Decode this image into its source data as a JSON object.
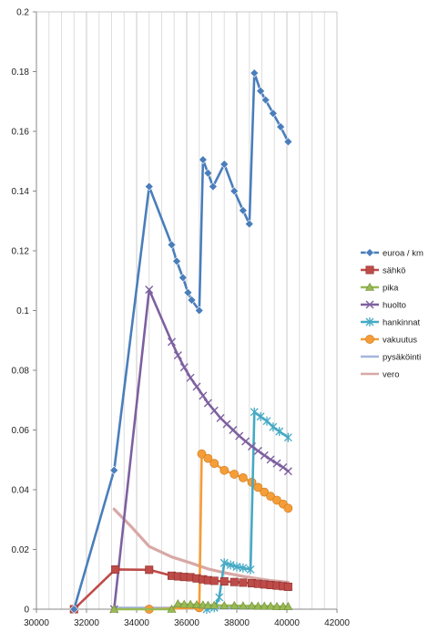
{
  "chart_data": {
    "type": "line",
    "title": "",
    "xlabel": "",
    "ylabel": "",
    "xlim": [
      30000,
      42000
    ],
    "ylim": [
      0,
      0.2
    ],
    "x_ticks": [
      30000,
      32000,
      34000,
      36000,
      38000,
      40000,
      42000
    ],
    "x_tick_labels": [
      "30000",
      "32000",
      "34000",
      "36000",
      "38000",
      "40000",
      "42000"
    ],
    "y_ticks": [
      0,
      0.02,
      0.04,
      0.06,
      0.08,
      0.1,
      0.12,
      0.14,
      0.16,
      0.18,
      0.2
    ],
    "y_tick_labels": [
      "0",
      "0.02",
      "0.04",
      "0.06",
      "0.08",
      "0.1",
      "0.12",
      "0.14",
      "0.16",
      "0.18",
      "0.2"
    ],
    "grid": "vertical",
    "legend_position": "right",
    "series": [
      {
        "name": "euroa / km",
        "color": "#4a7ebb",
        "marker": "diamond",
        "points": [
          [
            31500,
            0
          ],
          [
            33100,
            0.0465
          ],
          [
            34500,
            0.1415
          ],
          [
            35400,
            0.122
          ],
          [
            35600,
            0.1165
          ],
          [
            35850,
            0.111
          ],
          [
            36050,
            0.106
          ],
          [
            36200,
            0.1035
          ],
          [
            36500,
            0.1
          ],
          [
            36650,
            0.1505
          ],
          [
            36850,
            0.146
          ],
          [
            37050,
            0.1415
          ],
          [
            37500,
            0.149
          ],
          [
            37900,
            0.14
          ],
          [
            38250,
            0.1335
          ],
          [
            38500,
            0.129
          ],
          [
            38700,
            0.1795
          ],
          [
            38950,
            0.1735
          ],
          [
            39150,
            0.1705
          ],
          [
            39450,
            0.166
          ],
          [
            39750,
            0.1615
          ],
          [
            40050,
            0.1565
          ]
        ]
      },
      {
        "name": "sähkö",
        "color": "#be4b48",
        "marker": "square",
        "points": [
          [
            31500,
            0
          ],
          [
            33150,
            0.0133
          ],
          [
            34500,
            0.0132
          ],
          [
            35400,
            0.0112
          ],
          [
            35650,
            0.011
          ],
          [
            35900,
            0.0108
          ],
          [
            36150,
            0.0107
          ],
          [
            36400,
            0.0103
          ],
          [
            36650,
            0.01
          ],
          [
            36850,
            0.0097
          ],
          [
            37100,
            0.0095
          ],
          [
            37500,
            0.0093
          ],
          [
            37900,
            0.0091
          ],
          [
            38250,
            0.0089
          ],
          [
            38600,
            0.0087
          ],
          [
            38850,
            0.0085
          ],
          [
            39100,
            0.0083
          ],
          [
            39350,
            0.0081
          ],
          [
            39600,
            0.0079
          ],
          [
            39850,
            0.0077
          ],
          [
            40050,
            0.0075
          ]
        ]
      },
      {
        "name": "pika",
        "color": "#98b954",
        "marker": "triangle",
        "points": [
          [
            33100,
            0
          ],
          [
            35400,
            0
          ],
          [
            35650,
            0.0018
          ],
          [
            35900,
            0.0016
          ],
          [
            36150,
            0.0016
          ],
          [
            36400,
            0.0015
          ],
          [
            36650,
            0.0014
          ],
          [
            36850,
            0.0013
          ],
          [
            37100,
            0.0013
          ],
          [
            37500,
            0.0012
          ],
          [
            37900,
            0.0012
          ],
          [
            38250,
            0.0011
          ],
          [
            38600,
            0.0011
          ],
          [
            38850,
            0.001
          ],
          [
            39100,
            0.001
          ],
          [
            39350,
            0.001
          ],
          [
            39600,
            0.0009
          ],
          [
            39850,
            0.0009
          ],
          [
            40050,
            0.0009
          ]
        ]
      },
      {
        "name": "huolto",
        "color": "#7d60a0",
        "marker": "x",
        "points": [
          [
            33100,
            0
          ],
          [
            34500,
            0.107
          ],
          [
            35400,
            0.0895
          ],
          [
            35650,
            0.085
          ],
          [
            35900,
            0.081
          ],
          [
            36150,
            0.0775
          ],
          [
            36400,
            0.0745
          ],
          [
            36650,
            0.0715
          ],
          [
            36850,
            0.069
          ],
          [
            37100,
            0.0665
          ],
          [
            37350,
            0.064
          ],
          [
            37600,
            0.062
          ],
          [
            37850,
            0.06
          ],
          [
            38100,
            0.058
          ],
          [
            38350,
            0.0562
          ],
          [
            38600,
            0.0545
          ],
          [
            38850,
            0.053
          ],
          [
            39100,
            0.0515
          ],
          [
            39350,
            0.0501
          ],
          [
            39600,
            0.0488
          ],
          [
            39850,
            0.0475
          ],
          [
            40050,
            0.0462
          ]
        ]
      },
      {
        "name": "hankinnat",
        "color": "#46aac5",
        "marker": "star",
        "points": [
          [
            36800,
            0
          ],
          [
            37100,
            0.0005
          ],
          [
            37300,
            0.004
          ],
          [
            37500,
            0.0155
          ],
          [
            37750,
            0.0148
          ],
          [
            38000,
            0.0142
          ],
          [
            38250,
            0.0138
          ],
          [
            38550,
            0.0133
          ],
          [
            38700,
            0.066
          ],
          [
            38950,
            0.0645
          ],
          [
            39200,
            0.063
          ],
          [
            39450,
            0.061
          ],
          [
            39700,
            0.0595
          ],
          [
            40050,
            0.0575
          ]
        ]
      },
      {
        "name": "vakuutus",
        "color": "#f59d38",
        "marker": "circle",
        "points": [
          [
            34500,
            0
          ],
          [
            36500,
            0.0005
          ],
          [
            36600,
            0.052
          ],
          [
            36850,
            0.0505
          ],
          [
            37100,
            0.0488
          ],
          [
            37500,
            0.0465
          ],
          [
            37900,
            0.0452
          ],
          [
            38250,
            0.044
          ],
          [
            38600,
            0.0425
          ],
          [
            38850,
            0.0408
          ],
          [
            39100,
            0.0392
          ],
          [
            39350,
            0.0378
          ],
          [
            39600,
            0.0365
          ],
          [
            39850,
            0.0352
          ],
          [
            40050,
            0.0338
          ]
        ]
      },
      {
        "name": "pysäköinti",
        "color": "#a5b5dc",
        "marker": "none",
        "points": [
          [
            33100,
            0.0004
          ],
          [
            40050,
            0.0003
          ]
        ]
      },
      {
        "name": "vero",
        "color": "#d8a8a6",
        "marker": "none",
        "points": [
          [
            33100,
            0.0335
          ],
          [
            33800,
            0.0275
          ],
          [
            34500,
            0.021
          ],
          [
            35400,
            0.0175
          ],
          [
            36150,
            0.0155
          ],
          [
            36850,
            0.0135
          ],
          [
            37500,
            0.0122
          ],
          [
            38250,
            0.011
          ],
          [
            38850,
            0.0102
          ],
          [
            39350,
            0.0096
          ],
          [
            40050,
            0.009
          ]
        ]
      }
    ]
  }
}
